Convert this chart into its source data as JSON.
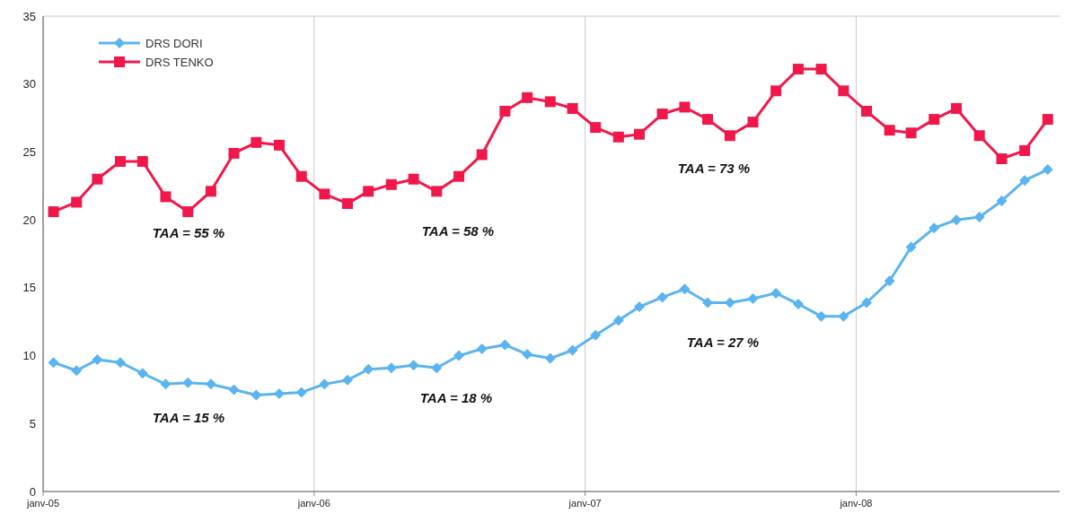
{
  "chart_data": {
    "type": "line",
    "x": [
      "2005-01-15",
      "2005-02-15",
      "2005-03-15",
      "2005-04-15",
      "2005-05-15",
      "2005-06-15",
      "2005-07-15",
      "2005-08-15",
      "2005-09-15",
      "2005-10-15",
      "2005-11-15",
      "2005-12-15",
      "2006-01-15",
      "2006-02-15",
      "2006-03-15",
      "2006-04-15",
      "2006-05-15",
      "2006-06-15",
      "2006-07-15",
      "2006-08-15",
      "2006-09-15",
      "2006-10-15",
      "2006-11-15",
      "2006-12-15",
      "2007-01-15",
      "2007-02-15",
      "2007-03-15",
      "2007-04-15",
      "2007-05-15",
      "2007-06-15",
      "2007-07-15",
      "2007-08-15",
      "2007-09-15",
      "2007-10-15",
      "2007-11-15",
      "2007-12-15",
      "2008-01-15",
      "2008-02-15",
      "2008-03-15",
      "2008-04-15",
      "2008-05-15",
      "2008-06-15",
      "2008-07-15",
      "2008-08-15",
      "2008-09-15"
    ],
    "series": [
      {
        "name": "DRS DORI",
        "color": "#5ab4f0",
        "marker": "diamond",
        "values": [
          9.5,
          8.9,
          9.7,
          9.5,
          8.7,
          7.9,
          8.0,
          7.9,
          7.5,
          7.1,
          7.2,
          7.3,
          7.9,
          8.2,
          9.0,
          9.1,
          9.3,
          9.1,
          10.0,
          10.5,
          10.8,
          10.1,
          9.8,
          10.4,
          11.5,
          12.6,
          13.6,
          14.3,
          14.9,
          13.9,
          13.9,
          14.2,
          14.6,
          13.8,
          12.9,
          12.9,
          13.9,
          15.5,
          18.0,
          19.4,
          20.0,
          20.2,
          21.4,
          22.9,
          23.7
        ]
      },
      {
        "name": "DRS TENKO",
        "color": "#f0184a",
        "marker": "square",
        "values": [
          20.6,
          21.3,
          23.0,
          24.3,
          24.3,
          21.7,
          20.6,
          22.1,
          24.9,
          25.7,
          25.5,
          23.2,
          21.9,
          21.2,
          22.1,
          22.6,
          23.0,
          22.1,
          23.2,
          24.8,
          28.0,
          29.0,
          28.7,
          28.2,
          26.8,
          26.1,
          26.3,
          27.8,
          28.3,
          27.4,
          26.2,
          27.2,
          29.5,
          31.1,
          31.1,
          29.5,
          28.0,
          26.6,
          26.4,
          27.4,
          28.2,
          26.2,
          24.5,
          25.1,
          27.4
        ]
      }
    ],
    "xlim": [
      "2005-01-01",
      "2008-10-01"
    ],
    "xticks": [
      {
        "value": "2005-01-01",
        "label": "janv-05"
      },
      {
        "value": "2006-01-01",
        "label": "janv-06"
      },
      {
        "value": "2007-01-01",
        "label": "janv-07"
      },
      {
        "value": "2008-01-01",
        "label": "janv-08"
      }
    ],
    "ylim": [
      0,
      35
    ],
    "yticks": [
      0,
      5,
      10,
      15,
      20,
      25,
      30,
      35
    ],
    "grid": "x",
    "legend": "top left",
    "annotations": [
      "TAA = 55 %",
      "TAA = 58 %",
      "TAA = 73 %",
      "TAA = 15 %",
      "TAA = 18 %",
      "TAA = 27 %"
    ]
  }
}
